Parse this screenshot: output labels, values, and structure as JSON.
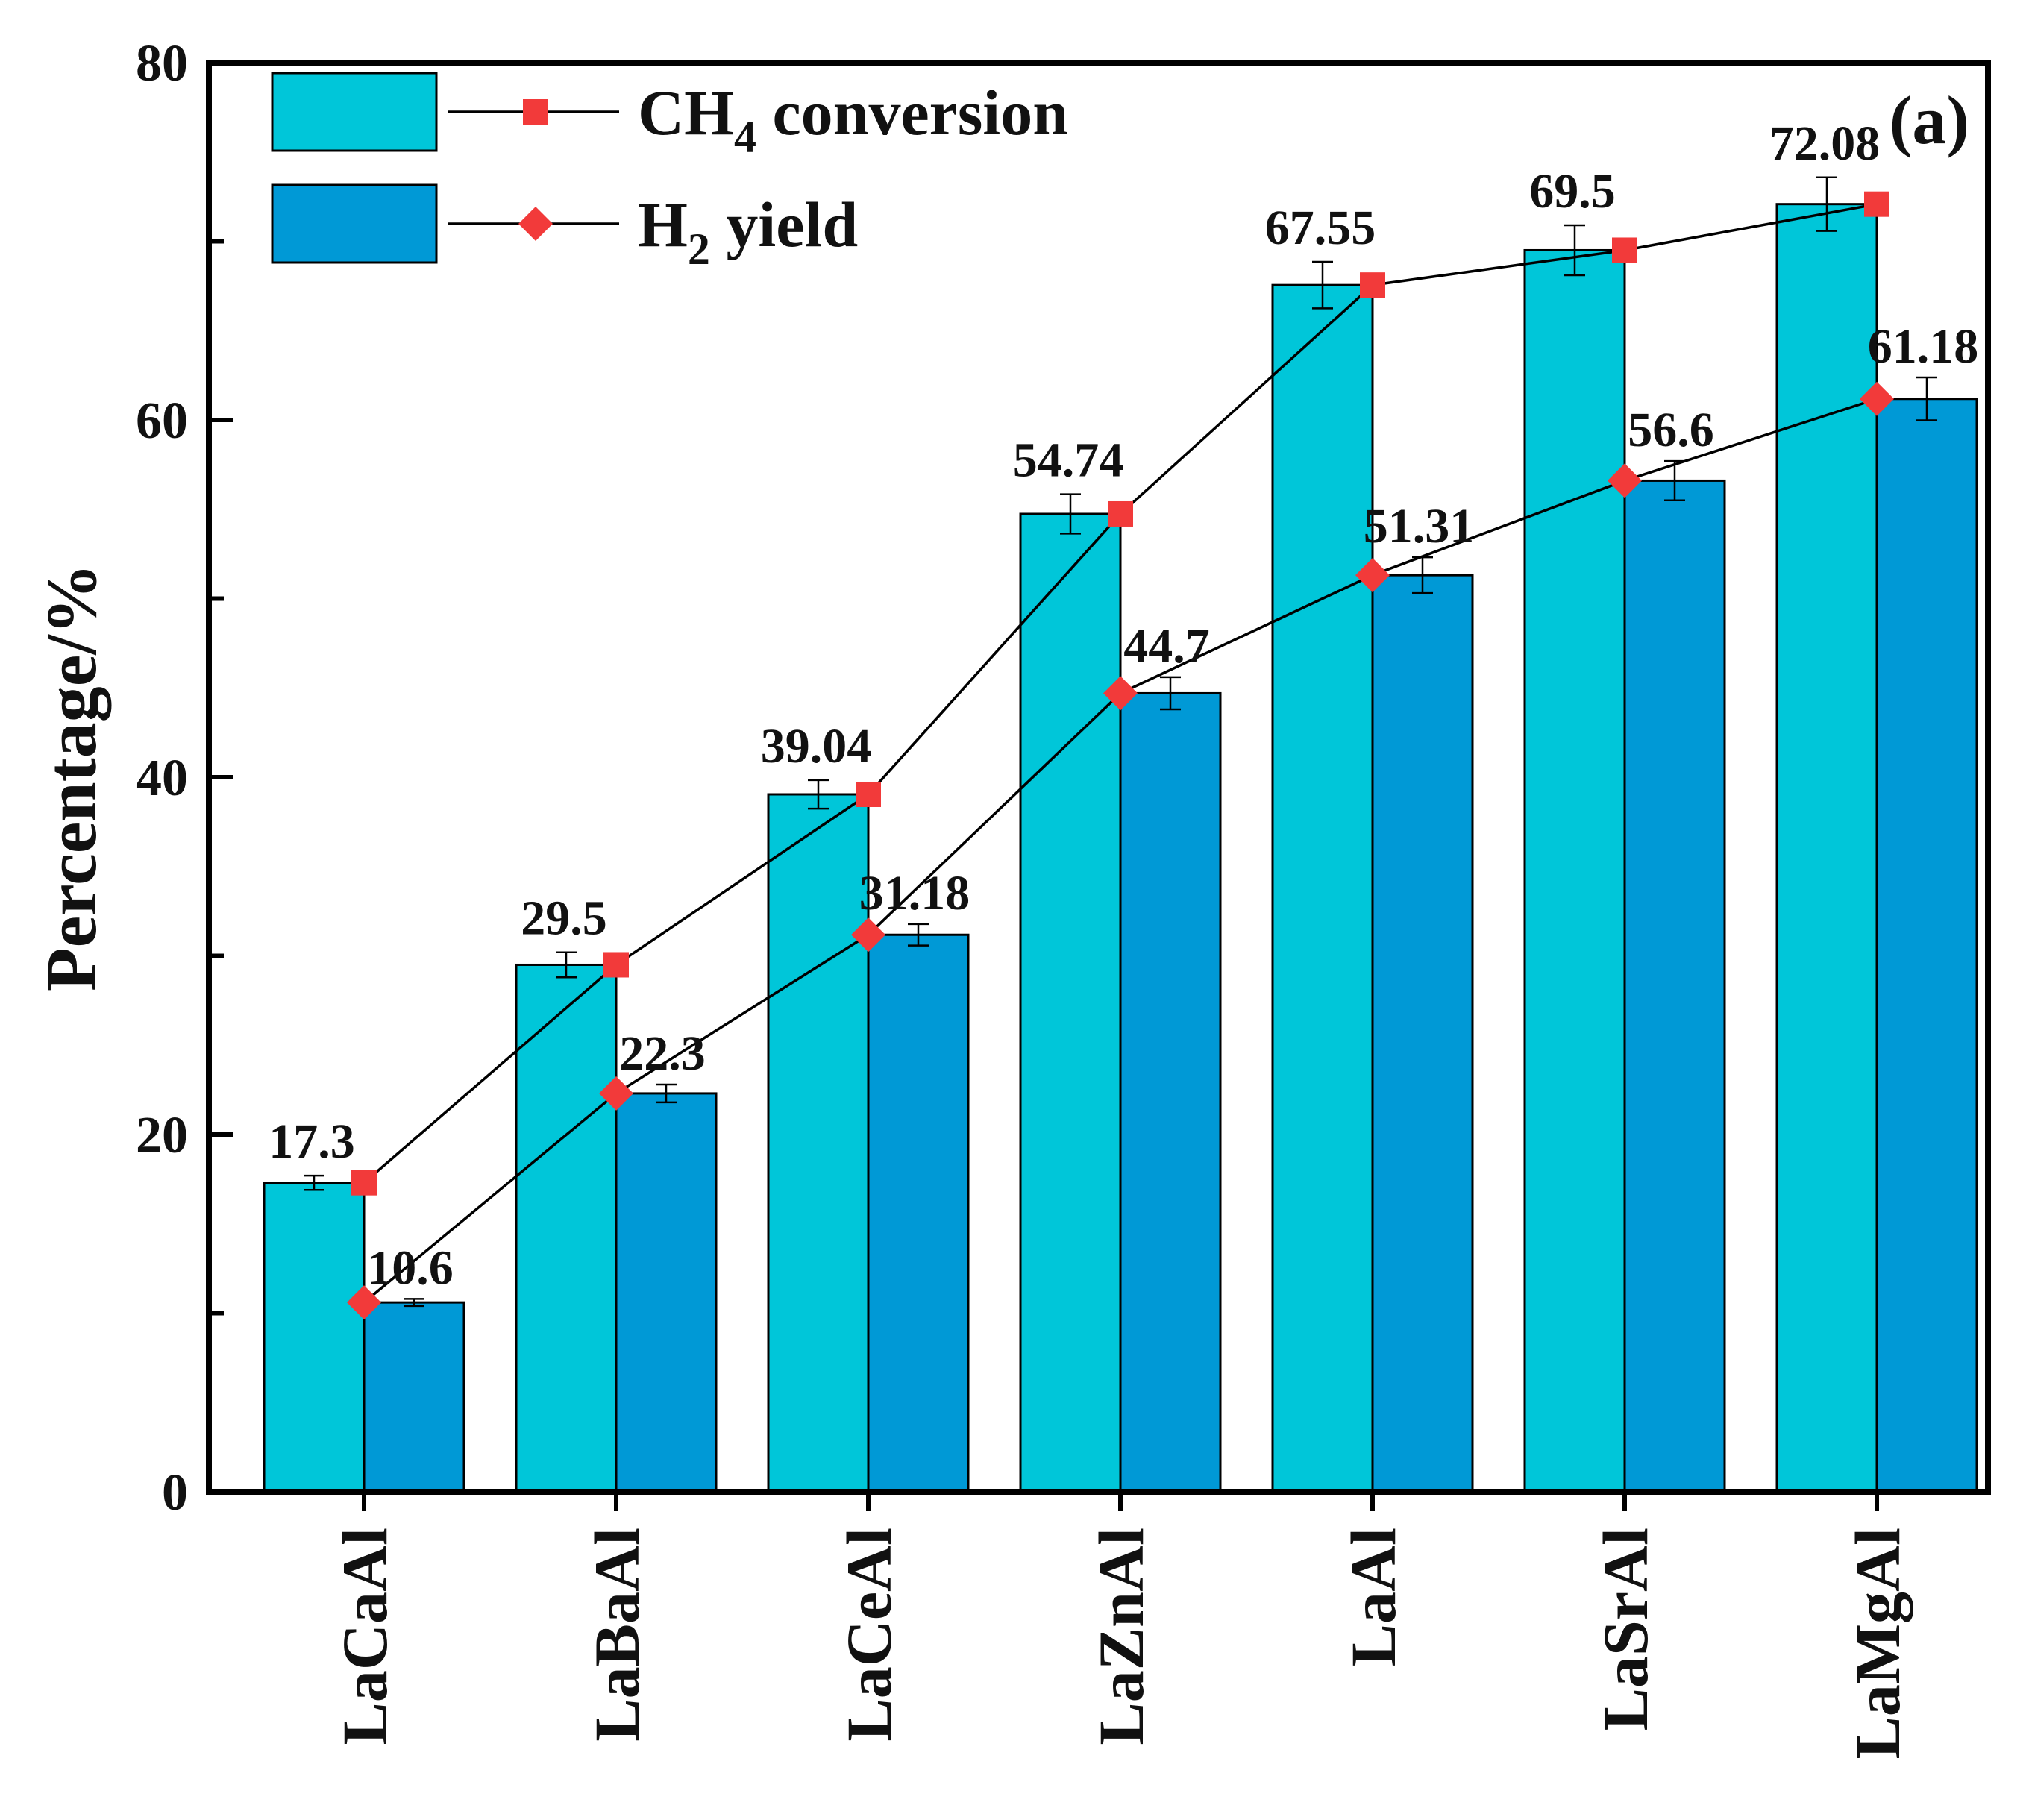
{
  "chart_data": {
    "type": "bar",
    "panel_label": "(a)",
    "title": "",
    "xlabel": "",
    "ylabel": "Percentage/%",
    "ylim": [
      0,
      80
    ],
    "y_ticks": [
      "0",
      "20",
      "40",
      "60",
      "80"
    ],
    "categories": [
      "LaCaAl",
      "LaBaAl",
      "LaCeAl",
      "LaZnAl",
      "LaAl",
      "LaSrAl",
      "LaMgAl"
    ],
    "series": [
      {
        "name": "CH4 conversion",
        "legend_main": "CH",
        "legend_sub": "4",
        "legend_tail": " conversion",
        "values": [
          17.3,
          29.5,
          39.04,
          54.74,
          67.55,
          69.5,
          72.08
        ],
        "labels": [
          "17.3",
          "29.5",
          "39.04",
          "54.74",
          "67.55",
          "69.5",
          "72.08"
        ],
        "errors": [
          0.4,
          0.7,
          0.8,
          1.1,
          1.3,
          1.4,
          1.5
        ],
        "bar_color": "#00c6d9",
        "marker": "square"
      },
      {
        "name": "H2 yield",
        "legend_main": "H",
        "legend_sub": "2",
        "legend_tail": " yield",
        "values": [
          10.6,
          22.3,
          31.18,
          44.7,
          51.31,
          56.6,
          61.18
        ],
        "labels": [
          "10.6",
          "22.3",
          "31.18",
          "44.7",
          "51.31",
          "56.6",
          "61.18"
        ],
        "errors": [
          0.2,
          0.5,
          0.6,
          0.9,
          1.0,
          1.1,
          1.2
        ],
        "bar_color": "#0099d6",
        "marker": "diamond"
      }
    ],
    "marker_color": "#f23a3a",
    "line_color": "#000000"
  }
}
